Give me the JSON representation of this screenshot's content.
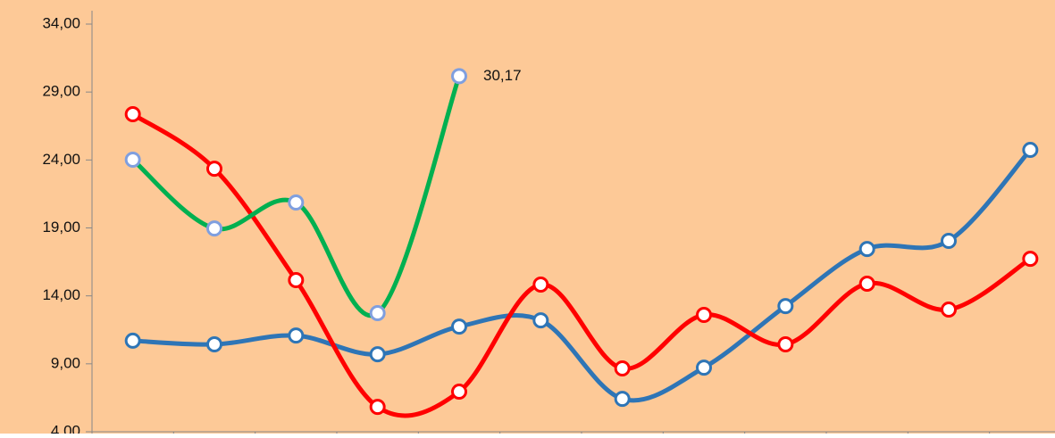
{
  "chart_data": {
    "type": "line",
    "categories": [
      null,
      null,
      null,
      null,
      null,
      null,
      null,
      null,
      null,
      null,
      null,
      null
    ],
    "series": [
      {
        "color": "#2e75b6",
        "values": [
          10.7,
          10.43,
          11.08,
          9.7,
          11.74,
          12.2,
          6.42,
          8.72,
          13.25,
          17.45,
          18.05,
          24.74
        ]
      },
      {
        "color": "#ff0000",
        "values": [
          27.37,
          23.36,
          15.16,
          5.83,
          6.95,
          14.83,
          8.66,
          12.6,
          10.43,
          14.9,
          12.99,
          16.73
        ]
      },
      {
        "color": "#00b050",
        "marker_edge": "#7f9fdf",
        "values": [
          24.02,
          18.96,
          20.87,
          12.73,
          30.17,
          null,
          null,
          null,
          null,
          null,
          null,
          null
        ],
        "value_labels": [
          null,
          null,
          null,
          null,
          "30,17",
          null,
          null,
          null,
          null,
          null,
          null,
          null
        ]
      }
    ],
    "ylim": [
      4,
      34
    ],
    "yticks": [
      {
        "value": 4,
        "label": "4,00"
      },
      {
        "value": 9,
        "label": "9,00"
      },
      {
        "value": 14,
        "label": "14,00"
      },
      {
        "value": 19,
        "label": "19,00"
      },
      {
        "value": 24,
        "label": "24,00"
      },
      {
        "value": 29,
        "label": "29,00"
      },
      {
        "value": 34,
        "label": "34,00"
      }
    ],
    "smooth": true,
    "background": "#fdc997"
  }
}
